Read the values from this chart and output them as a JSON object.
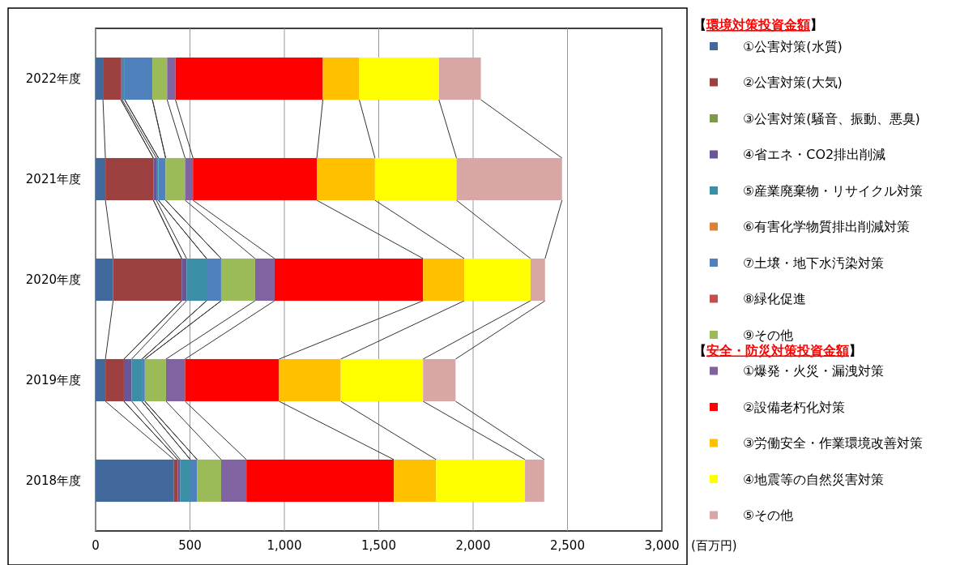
{
  "chart_data": {
    "type": "bar",
    "orientation": "horizontal",
    "stacked": true,
    "grid": "x",
    "legend": "right",
    "legend_title": "【環境対策投資金額】",
    "annotations": [
      "【安全・防災対策投資金額】"
    ],
    "xlabel": "(百万円)",
    "xlim": [
      0,
      3000
    ],
    "xticks": [
      0,
      500,
      {
        "value": 1000,
        "label": "1,000"
      },
      {
        "value": 1500,
        "label": "1,500"
      },
      {
        "value": 2000,
        "label": "2,000"
      },
      {
        "value": 2500,
        "label": "2,500"
      },
      {
        "value": 3000,
        "label": "3,000"
      }
    ],
    "categories": [
      "2022年度",
      "2021年度",
      "2020年度",
      "2019年度",
      "2018年度"
    ],
    "series": [
      {
        "name": "①公害対策(水質)",
        "color": "#41699c",
        "values": [
          39,
          52,
          93,
          52,
          415
        ]
      },
      {
        "name": "②公害対策(大気)",
        "color": "#9d4040",
        "values": [
          95,
          254,
          363,
          98,
          21
        ]
      },
      {
        "name": "③公害対策(騒音、振動、悪臭)",
        "color": "#7a9a45",
        "values": [
          0,
          0,
          0,
          0,
          0
        ]
      },
      {
        "name": "④省エネ・CO2排出削減",
        "color": "#6b559a",
        "values": [
          7,
          16,
          26,
          41,
          12
        ]
      },
      {
        "name": "⑤産業廃棄物・リサイクル対策",
        "color": "#3a8ea5",
        "values": [
          13,
          11,
          106,
          54,
          54
        ]
      },
      {
        "name": "⑥有害化学物質排出削減対策",
        "color": "#d9823a",
        "values": [
          0,
          0,
          0,
          0,
          0
        ]
      },
      {
        "name": "⑦土壌・地下水汚染対策",
        "color": "#4f81bd",
        "values": [
          147,
          38,
          77,
          16,
          36
        ]
      },
      {
        "name": "⑧緑化促進",
        "color": "#c0504d",
        "values": [
          0,
          0,
          0,
          0,
          0
        ]
      },
      {
        "name": "⑨その他",
        "color": "#9bbb59",
        "values": [
          78,
          103,
          180,
          112,
          127
        ]
      },
      {
        "name": "①爆発・火災・漏洩対策",
        "color": "#8064a2",
        "values": [
          44,
          42,
          103,
          101,
          134
        ]
      },
      {
        "name": "②設備老朽化対策",
        "color": "#ff0000",
        "values": [
          781,
          656,
          787,
          498,
          781
        ]
      },
      {
        "name": "③労働安全・作業環境改善対策",
        "color": "#ffc000",
        "values": [
          193,
          308,
          218,
          327,
          224
        ]
      },
      {
        "name": "④地震等の自然災害対策",
        "color": "#ffff00",
        "values": [
          422,
          432,
          351,
          436,
          471
        ]
      },
      {
        "name": "⑤その他",
        "color": "#d9a6a6",
        "values": [
          222,
          559,
          77,
          172,
          102
        ]
      }
    ]
  }
}
